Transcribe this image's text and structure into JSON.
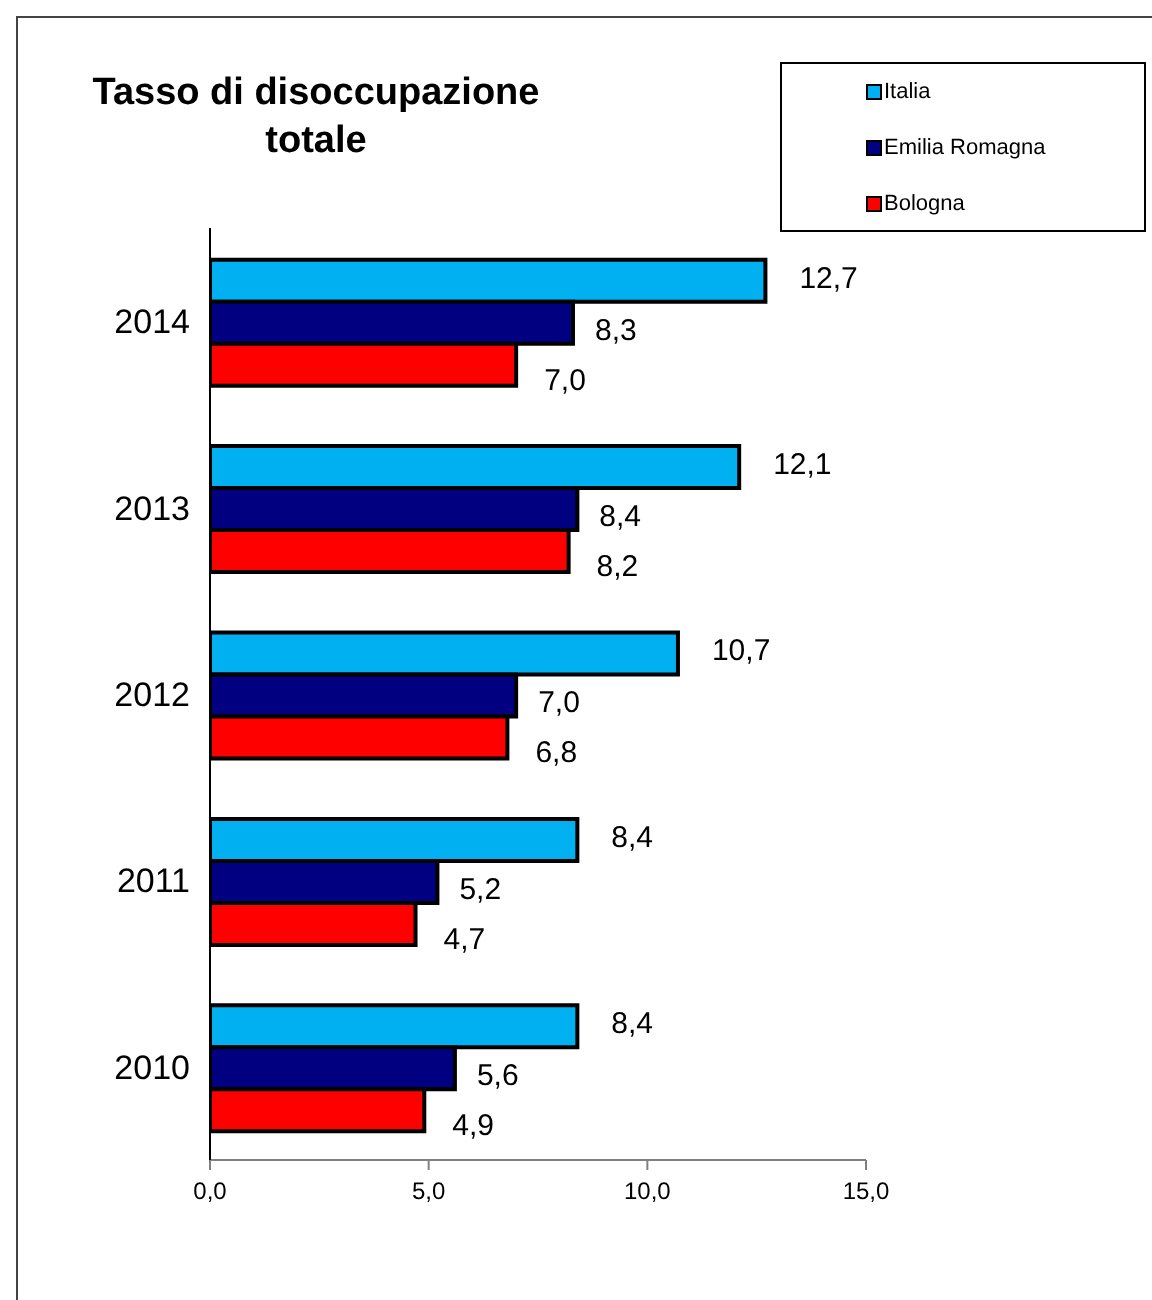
{
  "chart_data": {
    "type": "bar",
    "orientation": "horizontal",
    "title": "Tasso di disoccupazione totale",
    "categories": [
      "2014",
      "2013",
      "2012",
      "2011",
      "2010"
    ],
    "series": [
      {
        "name": "Italia",
        "color": "#00b0f0",
        "values": [
          12.7,
          12.1,
          10.7,
          8.4,
          8.4
        ],
        "value_labels": [
          "12,7",
          "12,1",
          "10,7",
          "8,4",
          "8,4"
        ]
      },
      {
        "name": "Emilia Romagna",
        "color": "#000080",
        "values": [
          8.3,
          8.4,
          7.0,
          5.2,
          5.6
        ],
        "value_labels": [
          "8,3",
          "8,4",
          "7,0",
          "5,2",
          "5,6"
        ]
      },
      {
        "name": "Bologna",
        "color": "#ff0000",
        "values": [
          7.0,
          8.2,
          6.8,
          4.7,
          4.9
        ],
        "value_labels": [
          "7,0",
          "8,2",
          "6,8",
          "4,7",
          "4,9"
        ]
      }
    ],
    "xlim": [
      0,
      15
    ],
    "xticks": [
      {
        "value": 0,
        "label": "0,0"
      },
      {
        "value": 5,
        "label": "5,0"
      },
      {
        "value": 10,
        "label": "10,0"
      },
      {
        "value": 15,
        "label": "15,0"
      }
    ],
    "legend": "top right"
  }
}
